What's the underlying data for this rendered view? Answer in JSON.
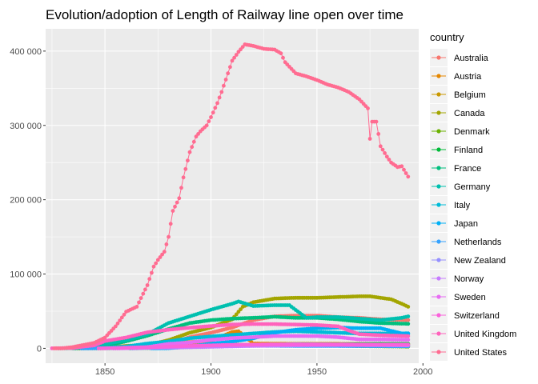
{
  "chart_data": {
    "type": "line",
    "title": "Evolution/adoption of Length of Railway line open over time",
    "xlabel": "",
    "ylabel": "",
    "xlim": [
      1822,
      1998
    ],
    "ylim": [
      -20000,
      430000
    ],
    "x_ticks": [
      1850,
      1900,
      1950,
      2000
    ],
    "y_ticks": [
      0,
      100000,
      200000,
      300000,
      400000
    ],
    "y_tick_labels": [
      "0",
      "100 000",
      "200 000",
      "300 000",
      "400 000"
    ],
    "grid": true,
    "legend_placement": "right",
    "legend_title": "country",
    "series": [
      {
        "name": "Australia",
        "color": "#F8766D",
        "points": [
          [
            1854,
            0
          ],
          [
            1870,
            1500
          ],
          [
            1880,
            6000
          ],
          [
            1890,
            15000
          ],
          [
            1900,
            21000
          ],
          [
            1910,
            28000
          ],
          [
            1920,
            38000
          ],
          [
            1930,
            43000
          ],
          [
            1940,
            44000
          ],
          [
            1950,
            44000
          ],
          [
            1960,
            42000
          ],
          [
            1970,
            41000
          ],
          [
            1980,
            39000
          ],
          [
            1993,
            38000
          ]
        ]
      },
      {
        "name": "Austria",
        "color": "#E58700",
        "points": [
          [
            1838,
            0
          ],
          [
            1850,
            1400
          ],
          [
            1870,
            4000
          ],
          [
            1880,
            6500
          ],
          [
            1890,
            8500
          ],
          [
            1900,
            10000
          ],
          [
            1910,
            22000
          ],
          [
            1913,
            23000
          ],
          [
            1920,
            6500
          ],
          [
            1940,
            6000
          ],
          [
            1960,
            6000
          ],
          [
            1980,
            5800
          ],
          [
            1993,
            5700
          ]
        ]
      },
      {
        "name": "Belgium",
        "color": "#C99800",
        "points": [
          [
            1835,
            0
          ],
          [
            1850,
            900
          ],
          [
            1870,
            3000
          ],
          [
            1890,
            4500
          ],
          [
            1910,
            4800
          ],
          [
            1930,
            5000
          ],
          [
            1950,
            5000
          ],
          [
            1970,
            4200
          ],
          [
            1993,
            3400
          ]
        ]
      },
      {
        "name": "Canada",
        "color": "#A3A500",
        "points": [
          [
            1836,
            0
          ],
          [
            1850,
            100
          ],
          [
            1860,
            3300
          ],
          [
            1870,
            4200
          ],
          [
            1880,
            11000
          ],
          [
            1890,
            21000
          ],
          [
            1900,
            28000
          ],
          [
            1910,
            39000
          ],
          [
            1915,
            56000
          ],
          [
            1920,
            62000
          ],
          [
            1930,
            67000
          ],
          [
            1940,
            68000
          ],
          [
            1950,
            68000
          ],
          [
            1960,
            69000
          ],
          [
            1970,
            70000
          ],
          [
            1975,
            70000
          ],
          [
            1980,
            68000
          ],
          [
            1985,
            66000
          ],
          [
            1990,
            60000
          ],
          [
            1993,
            56000
          ]
        ]
      },
      {
        "name": "Denmark",
        "color": "#6BB100",
        "points": [
          [
            1847,
            0
          ],
          [
            1870,
            800
          ],
          [
            1890,
            2000
          ],
          [
            1910,
            3500
          ],
          [
            1930,
            5000
          ],
          [
            1950,
            4500
          ],
          [
            1970,
            3000
          ],
          [
            1993,
            2300
          ]
        ]
      },
      {
        "name": "Finland",
        "color": "#00BA38",
        "points": [
          [
            1862,
            0
          ],
          [
            1880,
            900
          ],
          [
            1900,
            2700
          ],
          [
            1920,
            4000
          ],
          [
            1940,
            5500
          ],
          [
            1960,
            5400
          ],
          [
            1980,
            6000
          ],
          [
            1993,
            5900
          ]
        ]
      },
      {
        "name": "France",
        "color": "#00BF7D",
        "points": [
          [
            1828,
            0
          ],
          [
            1840,
            500
          ],
          [
            1850,
            3000
          ],
          [
            1860,
            9500
          ],
          [
            1870,
            17000
          ],
          [
            1880,
            26000
          ],
          [
            1890,
            34000
          ],
          [
            1900,
            38000
          ],
          [
            1910,
            40000
          ],
          [
            1920,
            41000
          ],
          [
            1930,
            42500
          ],
          [
            1940,
            41000
          ],
          [
            1950,
            41000
          ],
          [
            1960,
            39000
          ],
          [
            1970,
            36000
          ],
          [
            1980,
            34000
          ],
          [
            1993,
            33000
          ]
        ]
      },
      {
        "name": "Germany",
        "color": "#00C0AF",
        "points": [
          [
            1835,
            0
          ],
          [
            1840,
            500
          ],
          [
            1850,
            6000
          ],
          [
            1860,
            11000
          ],
          [
            1870,
            19000
          ],
          [
            1880,
            34000
          ],
          [
            1890,
            43000
          ],
          [
            1900,
            52000
          ],
          [
            1910,
            60000
          ],
          [
            1913,
            63000
          ],
          [
            1920,
            57000
          ],
          [
            1930,
            58000
          ],
          [
            1937,
            58000
          ],
          [
            1945,
            41000
          ],
          [
            1950,
            42000
          ],
          [
            1960,
            42000
          ],
          [
            1970,
            40000
          ],
          [
            1980,
            38000
          ],
          [
            1990,
            41000
          ],
          [
            1993,
            43000
          ]
        ]
      },
      {
        "name": "Italy",
        "color": "#00BCD8",
        "points": [
          [
            1839,
            0
          ],
          [
            1850,
            600
          ],
          [
            1860,
            2400
          ],
          [
            1870,
            6400
          ],
          [
            1880,
            9300
          ],
          [
            1890,
            13600
          ],
          [
            1900,
            16000
          ],
          [
            1910,
            18000
          ],
          [
            1920,
            20000
          ],
          [
            1930,
            22000
          ],
          [
            1940,
            23000
          ],
          [
            1950,
            22000
          ],
          [
            1960,
            21000
          ],
          [
            1970,
            20000
          ],
          [
            1980,
            20000
          ],
          [
            1993,
            19500
          ]
        ]
      },
      {
        "name": "Japan",
        "color": "#00B0F6",
        "points": [
          [
            1872,
            0
          ],
          [
            1880,
            200
          ],
          [
            1890,
            2300
          ],
          [
            1900,
            6300
          ],
          [
            1910,
            9000
          ],
          [
            1920,
            13500
          ],
          [
            1930,
            21000
          ],
          [
            1940,
            25000
          ],
          [
            1950,
            27000
          ],
          [
            1960,
            28000
          ],
          [
            1970,
            27000
          ],
          [
            1980,
            27000
          ],
          [
            1990,
            20000
          ],
          [
            1993,
            20200
          ]
        ]
      },
      {
        "name": "Netherlands",
        "color": "#35A2FF",
        "points": [
          [
            1839,
            0
          ],
          [
            1860,
            300
          ],
          [
            1880,
            1800
          ],
          [
            1900,
            2800
          ],
          [
            1920,
            3600
          ],
          [
            1940,
            3300
          ],
          [
            1960,
            3200
          ],
          [
            1980,
            2900
          ],
          [
            1993,
            2800
          ]
        ]
      },
      {
        "name": "New Zealand",
        "color": "#9590FF",
        "points": [
          [
            1863,
            0
          ],
          [
            1880,
            1900
          ],
          [
            1900,
            3700
          ],
          [
            1920,
            4800
          ],
          [
            1940,
            5500
          ],
          [
            1960,
            5200
          ],
          [
            1980,
            4500
          ],
          [
            1993,
            4000
          ]
        ]
      },
      {
        "name": "Norway",
        "color": "#C77CFF",
        "points": [
          [
            1854,
            0
          ],
          [
            1880,
            1000
          ],
          [
            1900,
            2000
          ],
          [
            1920,
            3300
          ],
          [
            1940,
            4000
          ],
          [
            1960,
            4400
          ],
          [
            1980,
            4200
          ],
          [
            1993,
            4000
          ]
        ]
      },
      {
        "name": "Sweden",
        "color": "#E76BF3",
        "points": [
          [
            1856,
            0
          ],
          [
            1870,
            1700
          ],
          [
            1880,
            5900
          ],
          [
            1890,
            8000
          ],
          [
            1900,
            11300
          ],
          [
            1910,
            13800
          ],
          [
            1920,
            15000
          ],
          [
            1930,
            16500
          ],
          [
            1940,
            16600
          ],
          [
            1950,
            16500
          ],
          [
            1960,
            15000
          ],
          [
            1970,
            12000
          ],
          [
            1980,
            12000
          ],
          [
            1993,
            11500
          ]
        ]
      },
      {
        "name": "Switzerland",
        "color": "#FA62DB",
        "points": [
          [
            1847,
            0
          ],
          [
            1870,
            1400
          ],
          [
            1890,
            3200
          ],
          [
            1910,
            4700
          ],
          [
            1930,
            5200
          ],
          [
            1950,
            5200
          ],
          [
            1970,
            5000
          ],
          [
            1993,
            5000
          ]
        ]
      },
      {
        "name": "United Kingdom",
        "color": "#FF62BC",
        "points": [
          [
            1825,
            0
          ],
          [
            1830,
            200
          ],
          [
            1835,
            500
          ],
          [
            1840,
            2400
          ],
          [
            1845,
            4000
          ],
          [
            1850,
            9800
          ],
          [
            1860,
            14600
          ],
          [
            1870,
            21600
          ],
          [
            1880,
            25000
          ],
          [
            1890,
            27800
          ],
          [
            1900,
            30000
          ],
          [
            1910,
            32000
          ],
          [
            1920,
            32700
          ],
          [
            1930,
            32600
          ],
          [
            1940,
            32000
          ],
          [
            1950,
            31300
          ],
          [
            1960,
            29600
          ],
          [
            1965,
            24000
          ],
          [
            1970,
            19000
          ],
          [
            1980,
            17600
          ],
          [
            1993,
            16500
          ]
        ]
      },
      {
        "name": "United States",
        "color": "#FF6C91",
        "points": [
          [
            1826,
            0
          ],
          [
            1830,
            40
          ],
          [
            1835,
            1800
          ],
          [
            1840,
            4500
          ],
          [
            1845,
            7400
          ],
          [
            1850,
            14500
          ],
          [
            1855,
            29600
          ],
          [
            1860,
            49300
          ],
          [
            1865,
            56000
          ],
          [
            1870,
            85000
          ],
          [
            1873,
            110000
          ],
          [
            1875,
            119000
          ],
          [
            1878,
            130000
          ],
          [
            1880,
            150000
          ],
          [
            1882,
            185000
          ],
          [
            1885,
            202000
          ],
          [
            1887,
            230000
          ],
          [
            1890,
            264000
          ],
          [
            1893,
            285000
          ],
          [
            1895,
            292000
          ],
          [
            1898,
            300000
          ],
          [
            1900,
            311000
          ],
          [
            1903,
            330000
          ],
          [
            1905,
            345000
          ],
          [
            1908,
            370000
          ],
          [
            1910,
            387000
          ],
          [
            1913,
            399000
          ],
          [
            1916,
            409000
          ],
          [
            1920,
            407000
          ],
          [
            1925,
            403000
          ],
          [
            1930,
            402000
          ],
          [
            1933,
            397000
          ],
          [
            1935,
            385000
          ],
          [
            1940,
            370000
          ],
          [
            1945,
            366000
          ],
          [
            1950,
            361000
          ],
          [
            1955,
            355000
          ],
          [
            1960,
            351000
          ],
          [
            1965,
            345000
          ],
          [
            1970,
            335000
          ],
          [
            1974,
            323000
          ],
          [
            1975,
            282000
          ],
          [
            1976,
            305000
          ],
          [
            1978,
            305000
          ],
          [
            1980,
            272000
          ],
          [
            1983,
            258000
          ],
          [
            1985,
            250000
          ],
          [
            1988,
            244000
          ],
          [
            1990,
            245000
          ],
          [
            1993,
            231000
          ]
        ]
      }
    ]
  }
}
